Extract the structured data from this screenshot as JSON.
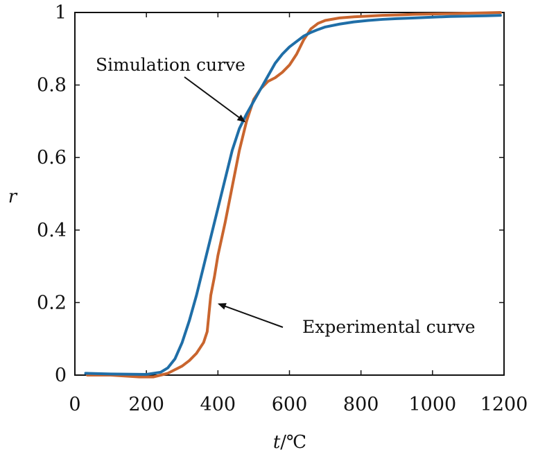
{
  "chart_data": {
    "type": "line",
    "title": "",
    "xlabel_var": "t",
    "xlabel_unit": "/℃",
    "ylabel": "r",
    "xlim": [
      0,
      1200
    ],
    "ylim": [
      0,
      1
    ],
    "xticks": [
      0,
      200,
      400,
      600,
      800,
      1000,
      1200
    ],
    "yticks": [
      0,
      0.2,
      0.4,
      0.6,
      0.8,
      1
    ],
    "ytick_labels": [
      "0",
      "0.2",
      "0.4",
      "0.6",
      "0.8",
      "1"
    ],
    "grid": false,
    "legend": "none",
    "series": [
      {
        "color": "#1f6ea7",
        "x": [
          30,
          100,
          200,
          240,
          260,
          280,
          300,
          320,
          340,
          360,
          380,
          400,
          420,
          440,
          460,
          480,
          500,
          520,
          540,
          560,
          580,
          600,
          620,
          640,
          660,
          680,
          700,
          740,
          780,
          820,
          860,
          900,
          950,
          1000,
          1050,
          1100,
          1150,
          1190
        ],
        "y": [
          0.005,
          0.003,
          0.002,
          0.008,
          0.02,
          0.045,
          0.09,
          0.15,
          0.22,
          0.3,
          0.38,
          0.46,
          0.54,
          0.62,
          0.68,
          0.72,
          0.755,
          0.79,
          0.825,
          0.86,
          0.885,
          0.905,
          0.92,
          0.935,
          0.945,
          0.953,
          0.96,
          0.968,
          0.974,
          0.978,
          0.981,
          0.983,
          0.985,
          0.987,
          0.989,
          0.99,
          0.991,
          0.992
        ]
      },
      {
        "color": "#c9652e",
        "x": [
          35,
          100,
          180,
          220,
          240,
          260,
          280,
          300,
          320,
          340,
          360,
          370,
          375,
          380,
          390,
          400,
          420,
          440,
          460,
          480,
          500,
          520,
          540,
          560,
          580,
          600,
          620,
          640,
          660,
          680,
          700,
          740,
          780,
          820,
          860,
          900,
          950,
          1000,
          1050,
          1100,
          1150,
          1190
        ],
        "y": [
          0.0,
          0.0,
          -0.005,
          -0.005,
          0.0,
          0.005,
          0.015,
          0.025,
          0.04,
          0.06,
          0.09,
          0.12,
          0.17,
          0.22,
          0.27,
          0.33,
          0.42,
          0.52,
          0.62,
          0.7,
          0.76,
          0.79,
          0.81,
          0.82,
          0.835,
          0.855,
          0.885,
          0.925,
          0.955,
          0.97,
          0.978,
          0.985,
          0.988,
          0.99,
          0.992,
          0.993,
          0.995,
          0.996,
          0.997,
          0.998,
          0.999,
          1.0
        ]
      }
    ],
    "annotations": [
      {
        "text": "Simulation curve",
        "arrow_to": [
          480,
          0.69
        ]
      },
      {
        "text": "Experimental curve",
        "arrow_to": [
          395,
          0.2
        ]
      }
    ]
  }
}
